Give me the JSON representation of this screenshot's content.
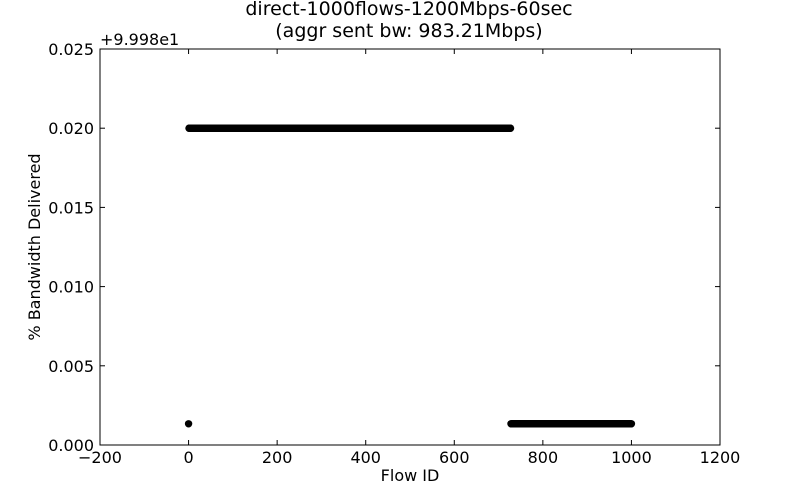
{
  "chart_data": {
    "type": "scatter",
    "title_line1": "direct-1000flows-1200Mbps-60sec",
    "title_line2": "(aggr sent bw: 983.21Mbps)",
    "xlabel": "Flow ID",
    "ylabel": "% Bandwidth Delivered",
    "offset_label": "+9.998e1",
    "xlim": [
      -200,
      1200
    ],
    "ylim": [
      0.0,
      0.025
    ],
    "x_ticks": [
      "−200",
      "0",
      "200",
      "400",
      "600",
      "800",
      "1000",
      "1200"
    ],
    "y_ticks": [
      "0.000",
      "0.005",
      "0.010",
      "0.015",
      "0.020",
      "0.025"
    ],
    "grid": false,
    "series": [
      {
        "marker_color": "#000000",
        "segments": [
          {
            "x_start": 0,
            "x_end": 0,
            "y": 0.00134
          },
          {
            "x_start": 1,
            "x_end": 727,
            "y": 0.02
          },
          {
            "x_start": 728,
            "x_end": 1000,
            "y": 0.00134
          }
        ]
      }
    ]
  }
}
